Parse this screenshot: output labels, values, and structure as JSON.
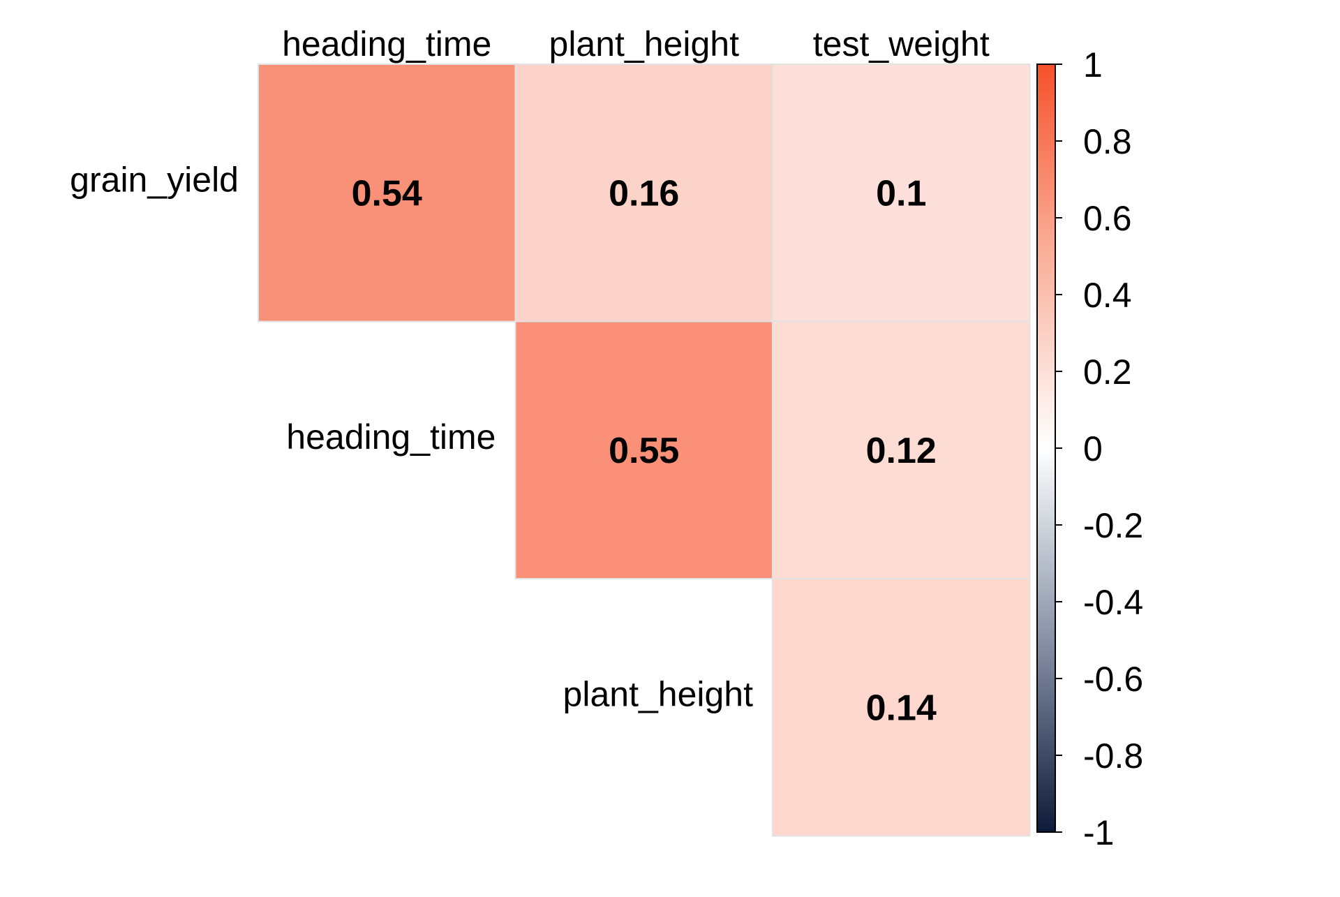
{
  "chart_data": {
    "type": "heatmap",
    "title": "",
    "columns": [
      "heading_time",
      "plant_height",
      "test_weight"
    ],
    "rows": [
      "grain_yield",
      "heading_time",
      "plant_height"
    ],
    "cells": [
      {
        "row": "grain_yield",
        "col": "heading_time",
        "value": 0.54,
        "label": "0.54"
      },
      {
        "row": "grain_yield",
        "col": "plant_height",
        "value": 0.16,
        "label": "0.16"
      },
      {
        "row": "grain_yield",
        "col": "test_weight",
        "value": 0.1,
        "label": "0.1"
      },
      {
        "row": "heading_time",
        "col": "plant_height",
        "value": 0.55,
        "label": "0.55"
      },
      {
        "row": "heading_time",
        "col": "test_weight",
        "value": 0.12,
        "label": "0.12"
      },
      {
        "row": "plant_height",
        "col": "test_weight",
        "value": 0.14,
        "label": "0.14"
      }
    ],
    "colorbar": {
      "range": [
        -1,
        1
      ],
      "ticks": [
        "1",
        "0.8",
        "0.6",
        "0.4",
        "0.2",
        "0",
        "-0.2",
        "-0.4",
        "-0.6",
        "-0.8",
        "-1"
      ],
      "colors": {
        "low": "#0d1b3a",
        "mid": "#ffffff",
        "high": "#f5512a"
      }
    }
  }
}
